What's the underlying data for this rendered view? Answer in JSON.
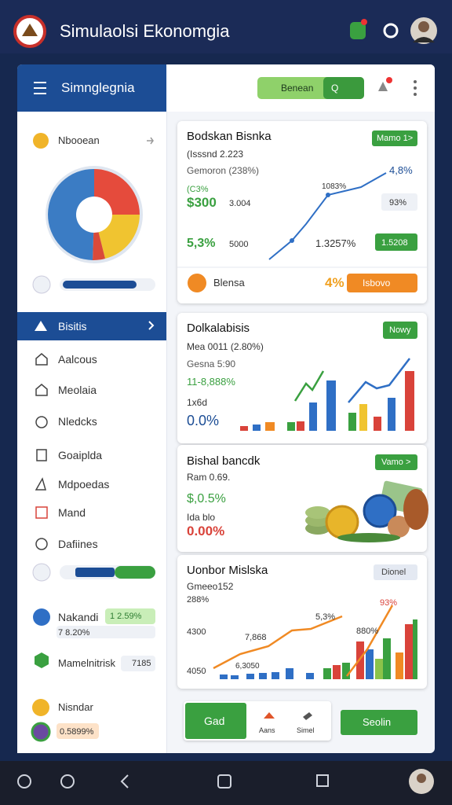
{
  "header": {
    "title": "Simulaolsi Ekonomgia"
  },
  "toolbar": {
    "search": "Benean",
    "button": "Q"
  },
  "sidebar": {
    "title": "Simnglegnia",
    "summary": "Nbooean",
    "menu": [
      "Bisitis",
      "Aalcous",
      "Meolaia",
      "Nledcks",
      "Goaiplda",
      "Mdpoedas",
      "Mand",
      "Dafiines"
    ],
    "stats": [
      {
        "label": "Nakandi",
        "value": "1 2.59%",
        "detail": "7 8.20%"
      },
      {
        "label": "Mamelnitrisk",
        "value": "7185"
      },
      {
        "label": "Nisndar",
        "value": "0.5899%"
      }
    ]
  },
  "cards": [
    {
      "title": "Bodskan Bisnka",
      "subtitle": "(Isssnd 2.223",
      "button": "Mamo 1>",
      "lines": [
        "Gemoron (238%)",
        "(C3%",
        "$300",
        "3.004",
        "5,3%",
        "5000",
        "1083%",
        "4,8%",
        "93%",
        "1.3257%",
        "1.5208"
      ],
      "footer": {
        "label": "Blensa",
        "value": "4%",
        "button": "Isbovo"
      }
    },
    {
      "title": "Dolkalabisis",
      "button": "Nowy",
      "lines": [
        "Mea 0011 (2.80%)",
        "Gesna 5:90",
        "11-8,888%",
        "1x6d",
        "0.0%"
      ]
    },
    {
      "title": "Bishal bancdk",
      "button": "Vamo >",
      "lines": [
        "Ram 0.69.",
        "$,0.5%",
        "Ida blo",
        "0.00%"
      ]
    },
    {
      "title": "Uonbor Mislska",
      "button": "Dionel",
      "lines": [
        "Gmeeo152",
        "288%",
        "5,3%",
        "93%",
        "4300",
        "7,868",
        "880%",
        "4050",
        "6,3050"
      ]
    }
  ],
  "footer": {
    "button": "Gad",
    "items": [
      "Aans",
      "Simel"
    ],
    "action": "Seolin"
  }
}
